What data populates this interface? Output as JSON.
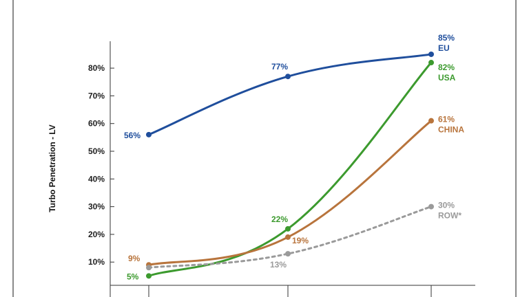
{
  "chart_data": {
    "type": "line",
    "title": "",
    "xlabel": "",
    "ylabel": "Turbo Penetration - LV",
    "x": [
      0,
      1,
      2
    ],
    "x_tick_labels": [
      "",
      "",
      ""
    ],
    "ylim": [
      5,
      90
    ],
    "y_ticks": [
      10,
      20,
      30,
      40,
      50,
      60,
      70,
      80
    ],
    "y_tick_labels": [
      "10%",
      "20%",
      "30%",
      "40%",
      "50%",
      "60%",
      "70%",
      "80%"
    ],
    "grid": false,
    "legend": "inline at line ends",
    "series": [
      {
        "name": "EU",
        "color": "#1f4e9c",
        "dash": false,
        "values": [
          56,
          77,
          85
        ],
        "labels": [
          "56%",
          "77%",
          "85%"
        ]
      },
      {
        "name": "USA",
        "color": "#3c9a2e",
        "dash": false,
        "values": [
          5,
          22,
          82
        ],
        "labels": [
          "5%",
          "22%",
          "82%"
        ]
      },
      {
        "name": "CHINA",
        "color": "#b8743c",
        "dash": false,
        "values": [
          9,
          19,
          61
        ],
        "labels": [
          "9%",
          "19%",
          "61%"
        ]
      },
      {
        "name": "ROW*",
        "color": "#9a9a9a",
        "dash": true,
        "values": [
          8,
          13,
          30
        ],
        "labels": [
          "",
          "13%",
          "30%"
        ]
      }
    ]
  }
}
